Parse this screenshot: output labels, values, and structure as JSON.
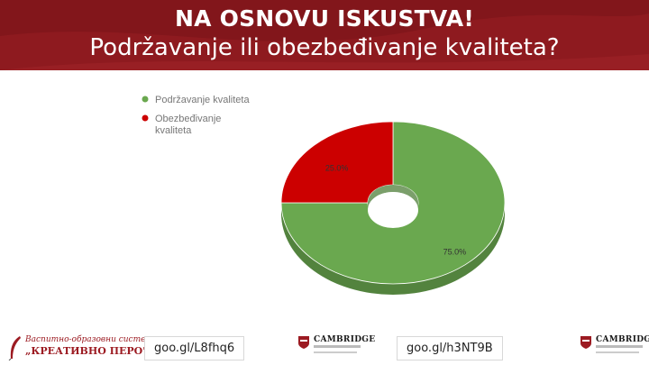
{
  "slide": {
    "title": "NA OSNOVU ISKUSTVA!",
    "subtitle": "Podržavanje ili obezbeđivanje kvaliteta?"
  },
  "colors": {
    "header": "#8e1a1f",
    "support": "#6aa84f",
    "assurance": "#cc0000"
  },
  "chart_data": {
    "type": "pie",
    "style": "donut, 3d-tilted",
    "legend_position": "top-left",
    "series": [
      {
        "name": "Podržavanje kvaliteta",
        "value": 75.0,
        "label": "75.0%",
        "color": "#6aa84f"
      },
      {
        "name": "Obezbeđivanje kvaliteta",
        "value": 25.0,
        "label": "25.0%",
        "color": "#cc0000"
      }
    ]
  },
  "legend": {
    "items": [
      {
        "lines": [
          "Podržavanje kvaliteta"
        ]
      },
      {
        "lines": [
          "Obezbeđivanje",
          "kvaliteta"
        ]
      }
    ]
  },
  "footer": {
    "link1": "goo.gl/L8fhq6",
    "link2": "goo.gl/h3NT9B",
    "logo_kp_top": "Васпитно-образовни систем",
    "logo_kp_main": "„КРЕАТИВНО ПЕРО\"",
    "logo_cambridge": "CAMBRIDGE"
  }
}
